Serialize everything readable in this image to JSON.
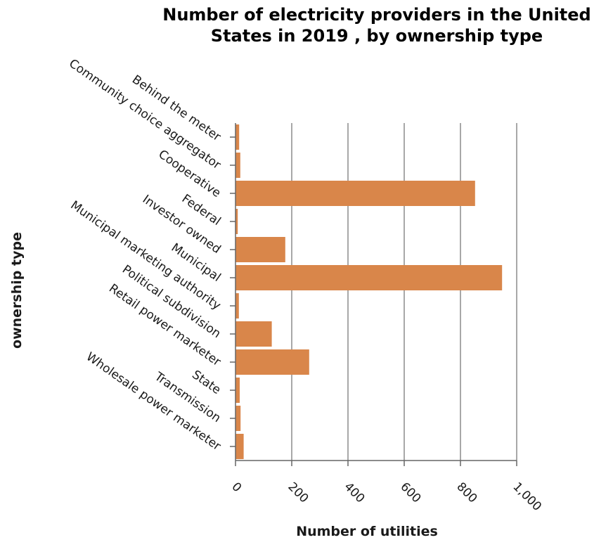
{
  "chart_data": {
    "type": "bar",
    "orientation": "horizontal",
    "title_lines": [
      "Number of electricity providers in the United",
      "States in 2019 , by ownership type"
    ],
    "xlabel": "Number of utilities",
    "ylabel": "ownership type",
    "categories": [
      "Behind the meter",
      "Community choice aggregator",
      "Cooperative",
      "Federal",
      "Investor owned",
      "Municipal",
      "Municipal marketing authority",
      "Political subdivision",
      "Retail power marketer",
      "State",
      "Transmission",
      "Wholesale power marketer"
    ],
    "values": [
      13,
      17,
      852,
      8,
      177,
      948,
      12,
      129,
      262,
      15,
      18,
      29
    ],
    "xlim": [
      0,
      1000
    ],
    "xticks": [
      0,
      200,
      400,
      600,
      800,
      1000
    ],
    "xtick_labels": [
      "0",
      "200",
      "400",
      "600",
      "800",
      "1,000"
    ],
    "bar_color": "#d9864a",
    "grid": "vertical"
  }
}
